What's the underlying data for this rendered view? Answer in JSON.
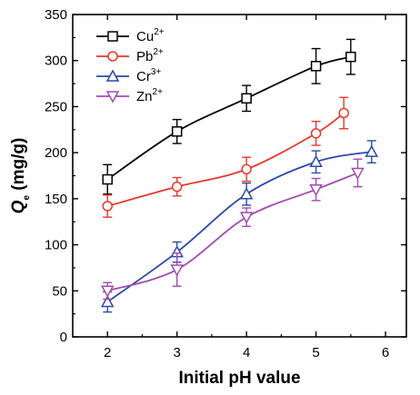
{
  "chart_data": {
    "type": "line",
    "xlabel": "Initial pH value",
    "ylabel_main": "Q",
    "ylabel_sub": "e",
    "ylabel_unit": " (mg/g)",
    "xlim": [
      1.5,
      6.3
    ],
    "ylim": [
      0,
      350
    ],
    "xticks": [
      2,
      3,
      4,
      5,
      6
    ],
    "yticks": [
      0,
      50,
      100,
      150,
      200,
      250,
      300,
      350
    ],
    "grid": false,
    "legend_position": "top-left",
    "series": [
      {
        "name": "Cu",
        "sup": "2+",
        "marker": "square",
        "color": "#000000",
        "x": [
          2,
          3,
          4,
          5,
          5.5
        ],
        "y": [
          171,
          223,
          259,
          294,
          304
        ],
        "err": [
          16,
          13,
          14,
          19,
          19
        ]
      },
      {
        "name": "Pb",
        "sup": "2+",
        "marker": "circle",
        "color": "#e8372c",
        "x": [
          2,
          3,
          4,
          5,
          5.4
        ],
        "y": [
          142,
          163,
          182,
          221,
          243
        ],
        "err": [
          12,
          10,
          13,
          13,
          17
        ]
      },
      {
        "name": "Cr",
        "sup": "3+",
        "marker": "triangle-up",
        "color": "#2b4aa8",
        "x": [
          2,
          3,
          4,
          5,
          5.8
        ],
        "y": [
          38,
          92,
          155,
          190,
          201
        ],
        "err": [
          11,
          11,
          12,
          12,
          12
        ]
      },
      {
        "name": "Zn",
        "sup": "2+",
        "marker": "triangle-down",
        "color": "#a24bb0",
        "x": [
          2,
          3,
          4,
          5,
          5.6
        ],
        "y": [
          50,
          73,
          130,
          160,
          178
        ],
        "err": [
          9,
          18,
          10,
          12,
          15
        ]
      }
    ]
  }
}
